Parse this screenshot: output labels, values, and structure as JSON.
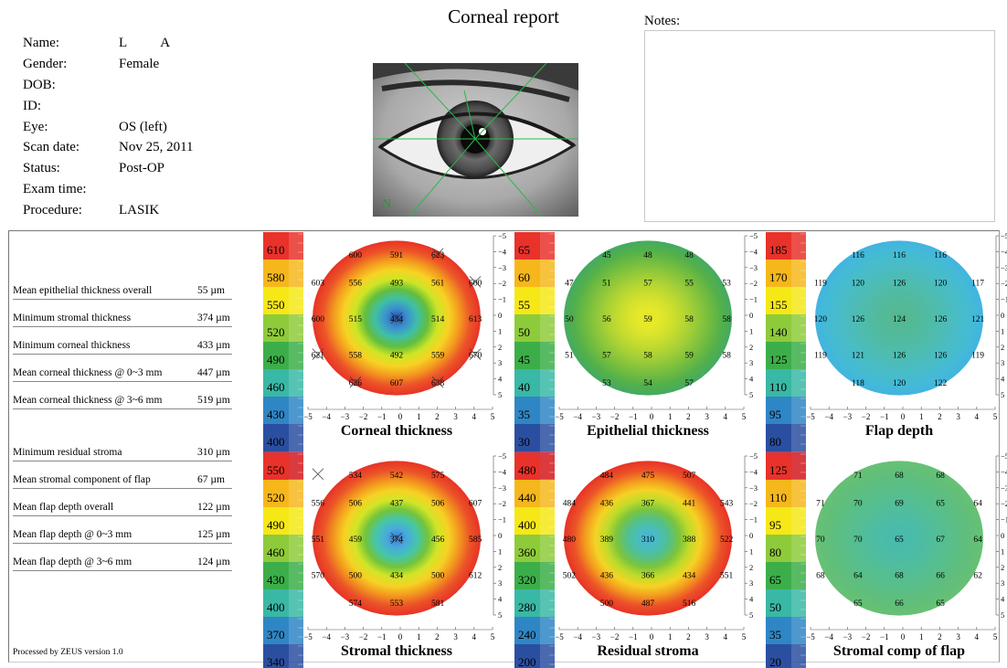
{
  "report_title": "Corneal report",
  "patient": [
    {
      "label": "Name:",
      "value": "L          A"
    },
    {
      "label": "Gender:",
      "value": "Female"
    },
    {
      "label": "DOB:",
      "value": ""
    },
    {
      "label": "ID:",
      "value": ""
    },
    {
      "label": "Eye:",
      "value": "OS (left)"
    },
    {
      "label": "Scan date:",
      "value": "Nov 25, 2011"
    },
    {
      "label": "Status:",
      "value": "Post-OP"
    },
    {
      "label": "Exam time:",
      "value": ""
    },
    {
      "label": "Procedure:",
      "value": "LASIK"
    }
  ],
  "eye_image": {
    "marker_letter": "N"
  },
  "notes": {
    "label": "Notes:",
    "text": ""
  },
  "stats_top": [
    {
      "label": "Mean epithelial thickness overall",
      "value": "55 µm"
    },
    {
      "label": "Minimum stromal thickness",
      "value": "374 µm"
    },
    {
      "label": "Minimum corneal thickness",
      "value": "433 µm"
    },
    {
      "label": "Mean corneal thickness @ 0~3 mm",
      "value": "447 µm"
    },
    {
      "label": "Mean corneal thickness @ 3~6 mm",
      "value": "519 µm"
    }
  ],
  "stats_bottom": [
    {
      "label": "Minimum residual stroma",
      "value": "310 µm"
    },
    {
      "label": "Mean stromal component of flap",
      "value": "67 µm"
    },
    {
      "label": "Mean flap depth overall",
      "value": "122 µm"
    },
    {
      "label": "Mean flap depth @ 0~3 mm",
      "value": "125 µm"
    },
    {
      "label": "Mean flap depth @ 3~6 mm",
      "value": "124 µm"
    }
  ],
  "footer": "Processed by ZEUS version 1.0",
  "axis_ticks": [
    "−5",
    "−4",
    "−3",
    "−2",
    "−1",
    "0",
    "1",
    "2",
    "3",
    "4",
    "5"
  ],
  "scale_colors": [
    "#e8322a",
    "#f6b71c",
    "#f6e816",
    "#8ecb3a",
    "#3cae49",
    "#39b8a5",
    "#2f86c5",
    "#2b4fa0",
    "#7451a2"
  ],
  "maps": [
    {
      "title": "Corneal thickness",
      "scale": [
        "610",
        "580",
        "550",
        "520",
        "490",
        "460",
        "430",
        "400"
      ],
      "gradient": [
        "#2d4ea8",
        "#3a8fd0",
        "#3fbfa8",
        "#63be3d",
        "#cde526",
        "#f7d324",
        "#f39b1f",
        "#ec5528",
        "#e73326"
      ],
      "values": [
        [
          "",
          "600",
          "591",
          "623",
          ""
        ],
        [
          "603",
          "556",
          "493",
          "561",
          "600"
        ],
        [
          "600",
          "515",
          "434",
          "514",
          "613"
        ],
        [
          "621",
          "558",
          "492",
          "559",
          "670"
        ],
        [
          "",
          "626",
          "607",
          "638",
          ""
        ]
      ],
      "strikes": [
        [
          2,
          2
        ],
        [
          3,
          0
        ],
        [
          3,
          4
        ],
        [
          4,
          1
        ],
        [
          4,
          3
        ],
        [
          0,
          3
        ],
        [
          1,
          4
        ]
      ]
    },
    {
      "title": "Epithelial thickness",
      "scale": [
        "65",
        "60",
        "55",
        "50",
        "45",
        "40",
        "35",
        "30"
      ],
      "gradient": [
        "#e3e72a",
        "#e6e82a",
        "#d6e22c",
        "#c1da30",
        "#a8d136",
        "#8cc63b",
        "#6fbb41",
        "#53b04a",
        "#44aa62"
      ],
      "values": [
        [
          "",
          "45",
          "48",
          "48",
          ""
        ],
        [
          "47",
          "51",
          "57",
          "55",
          "53"
        ],
        [
          "50",
          "56",
          "59",
          "58",
          "58"
        ],
        [
          "51",
          "57",
          "58",
          "59",
          "58"
        ],
        [
          "",
          "53",
          "54",
          "57",
          ""
        ]
      ],
      "strikes": []
    },
    {
      "title": "Flap depth",
      "scale": [
        "185",
        "170",
        "155",
        "140",
        "125",
        "110",
        "95",
        "80"
      ],
      "gradient": [
        "#53b88f",
        "#54b994",
        "#52ba9c",
        "#50bba6",
        "#4ebcb1",
        "#4bbcbf",
        "#47bccb",
        "#44bad6",
        "#42b4e0"
      ],
      "values": [
        [
          "",
          "116",
          "116",
          "116",
          ""
        ],
        [
          "119",
          "120",
          "126",
          "120",
          "117"
        ],
        [
          "120",
          "126",
          "124",
          "126",
          "121"
        ],
        [
          "119",
          "121",
          "126",
          "126",
          "119"
        ],
        [
          "",
          "118",
          "120",
          "122",
          ""
        ]
      ],
      "strikes": []
    },
    {
      "title": "Stromal thickness",
      "scale": [
        "550",
        "520",
        "490",
        "460",
        "430",
        "400",
        "370",
        "340"
      ],
      "gradient": [
        "#3a7ad0",
        "#48aadd",
        "#45c6ab",
        "#73c43b",
        "#d2e527",
        "#f7d124",
        "#f2961f",
        "#eb5428",
        "#e73326"
      ],
      "values": [
        [
          "",
          "534",
          "542",
          "575",
          ""
        ],
        [
          "556",
          "506",
          "437",
          "506",
          "607"
        ],
        [
          "551",
          "459",
          "374",
          "456",
          "585"
        ],
        [
          "570",
          "500",
          "434",
          "500",
          "612"
        ],
        [
          "",
          "574",
          "553",
          "581",
          ""
        ]
      ],
      "strikes": [
        [
          2,
          2
        ],
        [
          0,
          0
        ]
      ]
    },
    {
      "title": "Residual stroma",
      "scale": [
        "480",
        "440",
        "400",
        "360",
        "320",
        "280",
        "240",
        "200"
      ],
      "gradient": [
        "#49b3d6",
        "#48bdc0",
        "#52c08c",
        "#7bc43d",
        "#bfdb2b",
        "#f5d324",
        "#f39a1f",
        "#ec5328",
        "#e73326"
      ],
      "values": [
        [
          "",
          "484",
          "475",
          "507",
          ""
        ],
        [
          "484",
          "436",
          "367",
          "441",
          "543"
        ],
        [
          "480",
          "389",
          "310",
          "388",
          "522"
        ],
        [
          "502",
          "436",
          "366",
          "434",
          "551"
        ],
        [
          "",
          "500",
          "487",
          "516",
          ""
        ]
      ],
      "strikes": []
    },
    {
      "title": "Stromal comp of flap",
      "scale": [
        "125",
        "110",
        "95",
        "80",
        "65",
        "50",
        "35",
        "20"
      ],
      "gradient": [
        "#48bab0",
        "#4abbab",
        "#4cbca5",
        "#50bd9d",
        "#55be92",
        "#58be8a",
        "#5dbe80",
        "#62bf79",
        "#67c074"
      ],
      "values": [
        [
          "",
          "71",
          "68",
          "68",
          ""
        ],
        [
          "71",
          "70",
          "69",
          "65",
          "64"
        ],
        [
          "70",
          "70",
          "65",
          "67",
          "64"
        ],
        [
          "68",
          "64",
          "68",
          "66",
          "62"
        ],
        [
          "",
          "65",
          "66",
          "65",
          ""
        ]
      ],
      "strikes": []
    }
  ]
}
